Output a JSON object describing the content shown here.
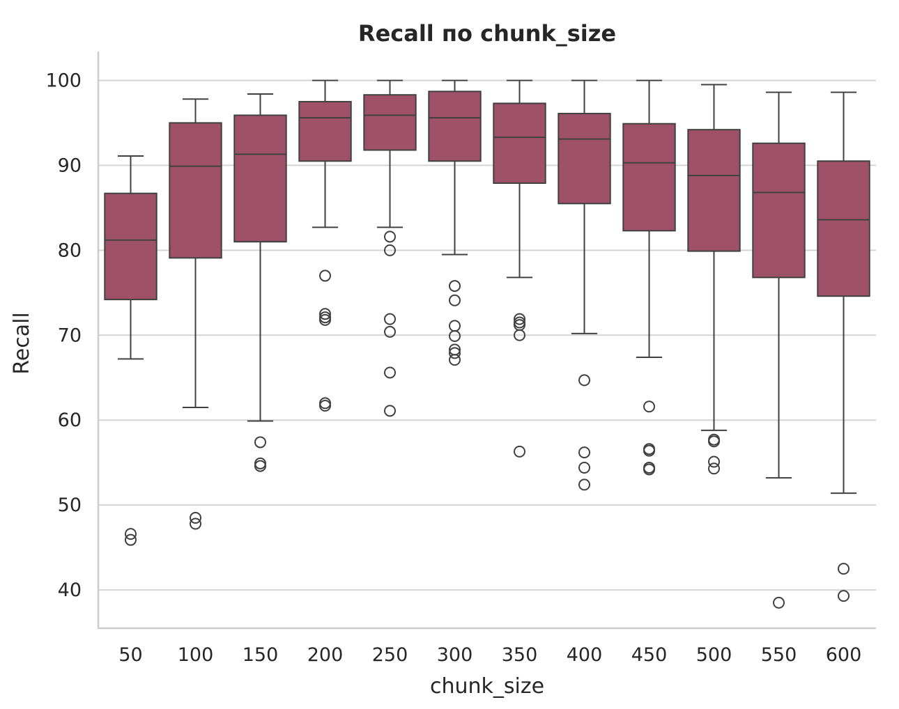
{
  "chart_data": {
    "type": "box",
    "title": "Recall по chunk_size",
    "xlabel": "chunk_size",
    "ylabel": "Recall",
    "ylim": [
      35.5,
      103.4
    ],
    "yticks": [
      40,
      50,
      60,
      70,
      80,
      90,
      100
    ],
    "grid": "horizontal",
    "box_color": "#a0516a",
    "line_color": "#404040",
    "categories": [
      "50",
      "100",
      "150",
      "200",
      "250",
      "300",
      "350",
      "400",
      "450",
      "500",
      "550",
      "600"
    ],
    "boxes": [
      {
        "category": "50",
        "whislo": 67.2,
        "q1": 74.2,
        "med": 81.2,
        "q3": 86.7,
        "whishi": 91.1,
        "fliers": [
          46.6,
          45.9
        ]
      },
      {
        "category": "100",
        "whislo": 61.5,
        "q1": 79.1,
        "med": 89.9,
        "q3": 95.0,
        "whishi": 97.8,
        "fliers": [
          48.5,
          47.8
        ]
      },
      {
        "category": "150",
        "whislo": 59.9,
        "q1": 81.0,
        "med": 91.3,
        "q3": 95.9,
        "whishi": 98.4,
        "fliers": [
          57.4,
          54.9,
          54.6
        ]
      },
      {
        "category": "200",
        "whislo": 82.7,
        "q1": 90.5,
        "med": 95.6,
        "q3": 97.5,
        "whishi": 100.0,
        "fliers": [
          77.0,
          72.5,
          72.1,
          71.8,
          62.0,
          61.7
        ]
      },
      {
        "category": "250",
        "whislo": 82.7,
        "q1": 91.8,
        "med": 95.9,
        "q3": 98.3,
        "whishi": 100.0,
        "fliers": [
          81.6,
          80.0,
          71.9,
          70.4,
          65.6,
          61.1
        ]
      },
      {
        "category": "300",
        "whislo": 79.5,
        "q1": 90.5,
        "med": 95.6,
        "q3": 98.7,
        "whishi": 100.0,
        "fliers": [
          75.8,
          74.1,
          71.1,
          69.9,
          68.3,
          67.9,
          67.1
        ]
      },
      {
        "category": "350",
        "whislo": 76.8,
        "q1": 87.9,
        "med": 93.3,
        "q3": 97.3,
        "whishi": 100.0,
        "fliers": [
          71.9,
          71.5,
          71.2,
          70.0,
          56.3
        ]
      },
      {
        "category": "400",
        "whislo": 70.2,
        "q1": 85.5,
        "med": 93.1,
        "q3": 96.1,
        "whishi": 100.0,
        "fliers": [
          64.7,
          56.2,
          54.4,
          52.4
        ]
      },
      {
        "category": "450",
        "whislo": 67.4,
        "q1": 82.3,
        "med": 90.3,
        "q3": 94.9,
        "whishi": 100.0,
        "fliers": [
          61.6,
          56.6,
          56.4,
          54.4,
          54.2
        ]
      },
      {
        "category": "500",
        "whislo": 58.8,
        "q1": 79.9,
        "med": 88.8,
        "q3": 94.2,
        "whishi": 99.5,
        "fliers": [
          57.7,
          57.5,
          55.1,
          54.3
        ]
      },
      {
        "category": "550",
        "whislo": 53.2,
        "q1": 76.8,
        "med": 86.8,
        "q3": 92.6,
        "whishi": 98.6,
        "fliers": [
          38.5
        ]
      },
      {
        "category": "600",
        "whislo": 51.4,
        "q1": 74.6,
        "med": 83.6,
        "q3": 90.5,
        "whishi": 98.6,
        "fliers": [
          42.5,
          39.3
        ]
      }
    ]
  }
}
